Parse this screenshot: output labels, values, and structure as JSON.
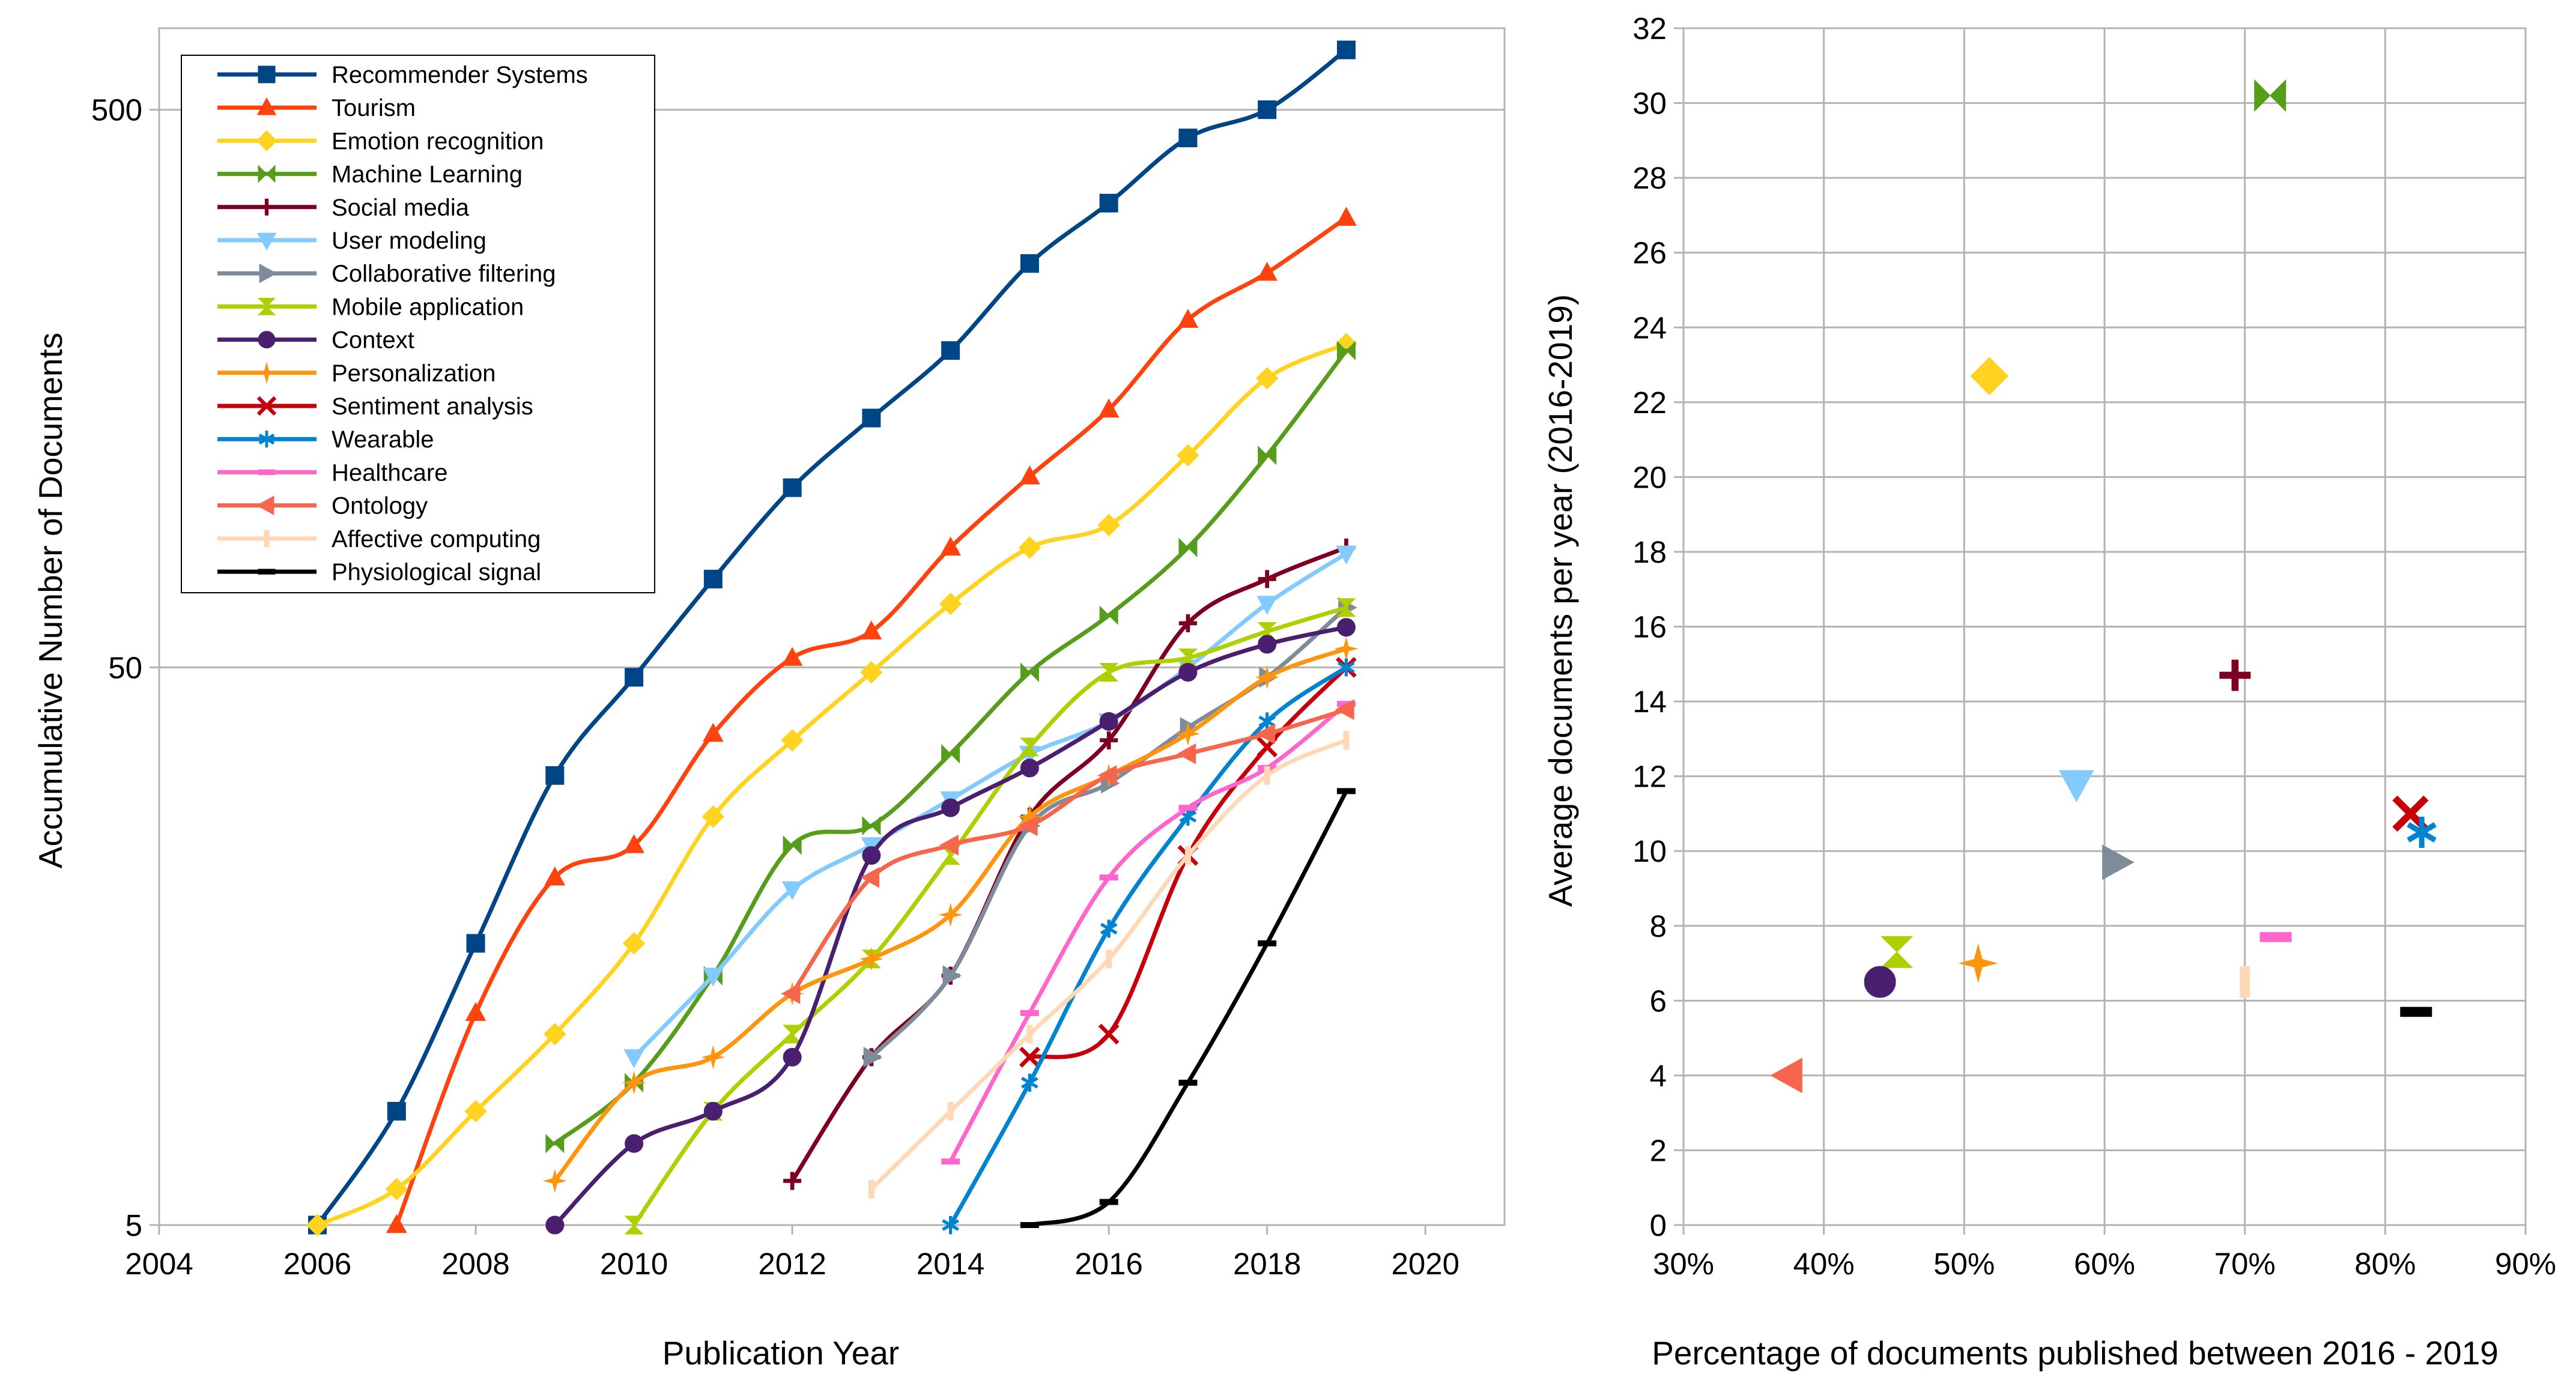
{
  "chart_data": [
    {
      "type": "line",
      "xlabel": "Publication Year",
      "ylabel": "Accumulative Number of Documents",
      "xlim": [
        2004,
        2021
      ],
      "ylim": [
        5,
        700
      ],
      "yscale": "log",
      "x_ticks": [
        2004,
        2006,
        2008,
        2010,
        2012,
        2014,
        2016,
        2018,
        2020
      ],
      "y_ticks": [
        5,
        50,
        500
      ],
      "grid": "horizontal",
      "legend_position": "top-left",
      "series": [
        {
          "name": "Recommender Systems",
          "color": "#004586",
          "marker": "square",
          "x": [
            2006,
            2007,
            2008,
            2009,
            2010,
            2011,
            2012,
            2013,
            2014,
            2015,
            2016,
            2017,
            2018,
            2019
          ],
          "y": [
            5,
            8,
            16,
            32,
            48,
            72,
            105,
            140,
            185,
            265,
            340,
            445,
            500,
            640
          ]
        },
        {
          "name": "Tourism",
          "color": "#ff420e",
          "marker": "triangle-up",
          "x": [
            2007,
            2008,
            2009,
            2010,
            2011,
            2012,
            2013,
            2014,
            2015,
            2016,
            2017,
            2018,
            2019
          ],
          "y": [
            5,
            12,
            21,
            24,
            38,
            52,
            58,
            82,
            110,
            145,
            210,
            255,
            320
          ]
        },
        {
          "name": "Emotion recognition",
          "color": "#ffd320",
          "marker": "diamond",
          "x": [
            2006,
            2007,
            2008,
            2009,
            2010,
            2011,
            2012,
            2013,
            2014,
            2015,
            2016,
            2017,
            2018,
            2019
          ],
          "y": [
            5,
            5.8,
            8,
            11,
            16,
            27,
            37,
            49,
            65,
            82,
            90,
            120,
            165,
            190
          ]
        },
        {
          "name": "Machine Learning",
          "color": "#579d1c",
          "marker": "hourglass-h",
          "x": [
            2009,
            2010,
            2011,
            2012,
            2013,
            2014,
            2015,
            2016,
            2017,
            2018,
            2019
          ],
          "y": [
            7,
            9,
            14,
            24,
            26,
            35,
            49,
            62,
            82,
            120,
            185
          ]
        },
        {
          "name": "Social media",
          "color": "#7e0021",
          "marker": "plus",
          "x": [
            2012,
            2013,
            2014,
            2015,
            2016,
            2017,
            2018,
            2019
          ],
          "y": [
            6,
            10,
            14,
            27,
            37,
            60,
            72,
            82
          ]
        },
        {
          "name": "User modeling",
          "color": "#83caff",
          "marker": "triangle-down",
          "x": [
            2010,
            2011,
            2012,
            2013,
            2014,
            2015,
            2016,
            2017,
            2018,
            2019
          ],
          "y": [
            10,
            14,
            20,
            24,
            29,
            35,
            40,
            50,
            65,
            80
          ]
        },
        {
          "name": "Collaborative filtering",
          "color": "#7e8b9a",
          "marker": "triangle-right",
          "x": [
            2013,
            2014,
            2015,
            2016,
            2017,
            2018,
            2019
          ],
          "y": [
            10,
            14,
            26,
            31,
            39,
            48,
            64
          ]
        },
        {
          "name": "Mobile application",
          "color": "#aecf00",
          "marker": "hourglass-v",
          "x": [
            2010,
            2011,
            2012,
            2013,
            2014,
            2015,
            2016,
            2017,
            2018,
            2019
          ],
          "y": [
            5,
            8,
            11,
            15,
            23,
            36,
            49,
            52,
            58,
            64
          ]
        },
        {
          "name": "Context",
          "color": "#4b1f6f",
          "marker": "circle",
          "x": [
            2009,
            2010,
            2011,
            2012,
            2013,
            2014,
            2015,
            2016,
            2017,
            2018,
            2019
          ],
          "y": [
            5,
            7,
            8,
            10,
            23,
            28,
            33,
            40,
            49,
            55,
            59
          ]
        },
        {
          "name": "Personalization",
          "color": "#ff950e",
          "marker": "star4",
          "x": [
            2009,
            2010,
            2011,
            2012,
            2013,
            2014,
            2015,
            2016,
            2017,
            2018,
            2019
          ],
          "y": [
            6,
            9,
            10,
            13,
            15,
            18,
            27,
            32,
            38,
            48,
            54
          ]
        },
        {
          "name": "Sentiment analysis",
          "color": "#c5000b",
          "marker": "x",
          "x": [
            2015,
            2016,
            2017,
            2018,
            2019
          ],
          "y": [
            10,
            11,
            23,
            36,
            50
          ]
        },
        {
          "name": "Wearable",
          "color": "#0084d1",
          "marker": "asterisk",
          "x": [
            2014,
            2015,
            2016,
            2017,
            2018,
            2019
          ],
          "y": [
            5,
            9,
            17,
            27,
            40,
            50
          ]
        },
        {
          "name": "Healthcare",
          "color": "#ff66cc",
          "marker": "dash",
          "x": [
            2014,
            2015,
            2016,
            2017,
            2018,
            2019
          ],
          "y": [
            6.5,
            12,
            21,
            28,
            33,
            43
          ]
        },
        {
          "name": "Ontology",
          "color": "#f5664d",
          "marker": "triangle-left",
          "x": [
            2012,
            2013,
            2014,
            2015,
            2016,
            2017,
            2018,
            2019
          ],
          "y": [
            13,
            21,
            24,
            26,
            32,
            35,
            38,
            42
          ]
        },
        {
          "name": "Affective computing",
          "color": "#ffd8b8",
          "marker": "vbar",
          "x": [
            2013,
            2014,
            2015,
            2016,
            2017,
            2018,
            2019
          ],
          "y": [
            5.8,
            8,
            11,
            15,
            23,
            32,
            37
          ]
        },
        {
          "name": "Physiological signal",
          "color": "#000000",
          "marker": "dash",
          "x": [
            2015,
            2016,
            2017,
            2018,
            2019
          ],
          "y": [
            5,
            5.5,
            9,
            16,
            30
          ]
        }
      ]
    },
    {
      "type": "scatter",
      "xlabel": "Percentage of documents published between 2016 - 2019",
      "ylabel": "Average documents per year (2016-2019)",
      "xlim": [
        30,
        90
      ],
      "ylim": [
        0,
        32
      ],
      "x_ticks": [
        "30%",
        "40%",
        "50%",
        "60%",
        "70%",
        "80%",
        "90%"
      ],
      "y_ticks": [
        0,
        2,
        4,
        6,
        8,
        10,
        12,
        14,
        16,
        18,
        20,
        22,
        24,
        26,
        28,
        30,
        32
      ],
      "grid": "both",
      "points": [
        {
          "series": "Machine Learning",
          "x": 71.8,
          "y": 30.2,
          "color": "#579d1c",
          "marker": "hourglass-h"
        },
        {
          "series": "Emotion recognition",
          "x": 51.8,
          "y": 22.7,
          "color": "#ffd320",
          "marker": "diamond"
        },
        {
          "series": "Social media",
          "x": 69.3,
          "y": 14.7,
          "color": "#7e0021",
          "marker": "plus"
        },
        {
          "series": "User modeling",
          "x": 58.0,
          "y": 11.8,
          "color": "#83caff",
          "marker": "triangle-down"
        },
        {
          "series": "Sentiment analysis",
          "x": 81.8,
          "y": 11.0,
          "color": "#c5000b",
          "marker": "x"
        },
        {
          "series": "Wearable",
          "x": 82.6,
          "y": 10.5,
          "color": "#0084d1",
          "marker": "asterisk"
        },
        {
          "series": "Collaborative filtering",
          "x": 60.8,
          "y": 9.7,
          "color": "#7e8b9a",
          "marker": "triangle-right"
        },
        {
          "series": "Healthcare",
          "x": 72.2,
          "y": 7.7,
          "color": "#ff66cc",
          "marker": "dash"
        },
        {
          "series": "Mobile application",
          "x": 45.2,
          "y": 7.3,
          "color": "#aecf00",
          "marker": "hourglass-v"
        },
        {
          "series": "Personalization",
          "x": 51.0,
          "y": 7.0,
          "color": "#ff950e",
          "marker": "star4"
        },
        {
          "series": "Affective computing",
          "x": 70.0,
          "y": 6.5,
          "color": "#ffd8b8",
          "marker": "vbar"
        },
        {
          "series": "Context",
          "x": 44.0,
          "y": 6.5,
          "color": "#4b1f6f",
          "marker": "circle"
        },
        {
          "series": "Physiological signal",
          "x": 82.2,
          "y": 5.7,
          "color": "#000000",
          "marker": "dash"
        },
        {
          "series": "Ontology",
          "x": 37.5,
          "y": 4.0,
          "color": "#f5664d",
          "marker": "triangle-left"
        }
      ]
    }
  ]
}
